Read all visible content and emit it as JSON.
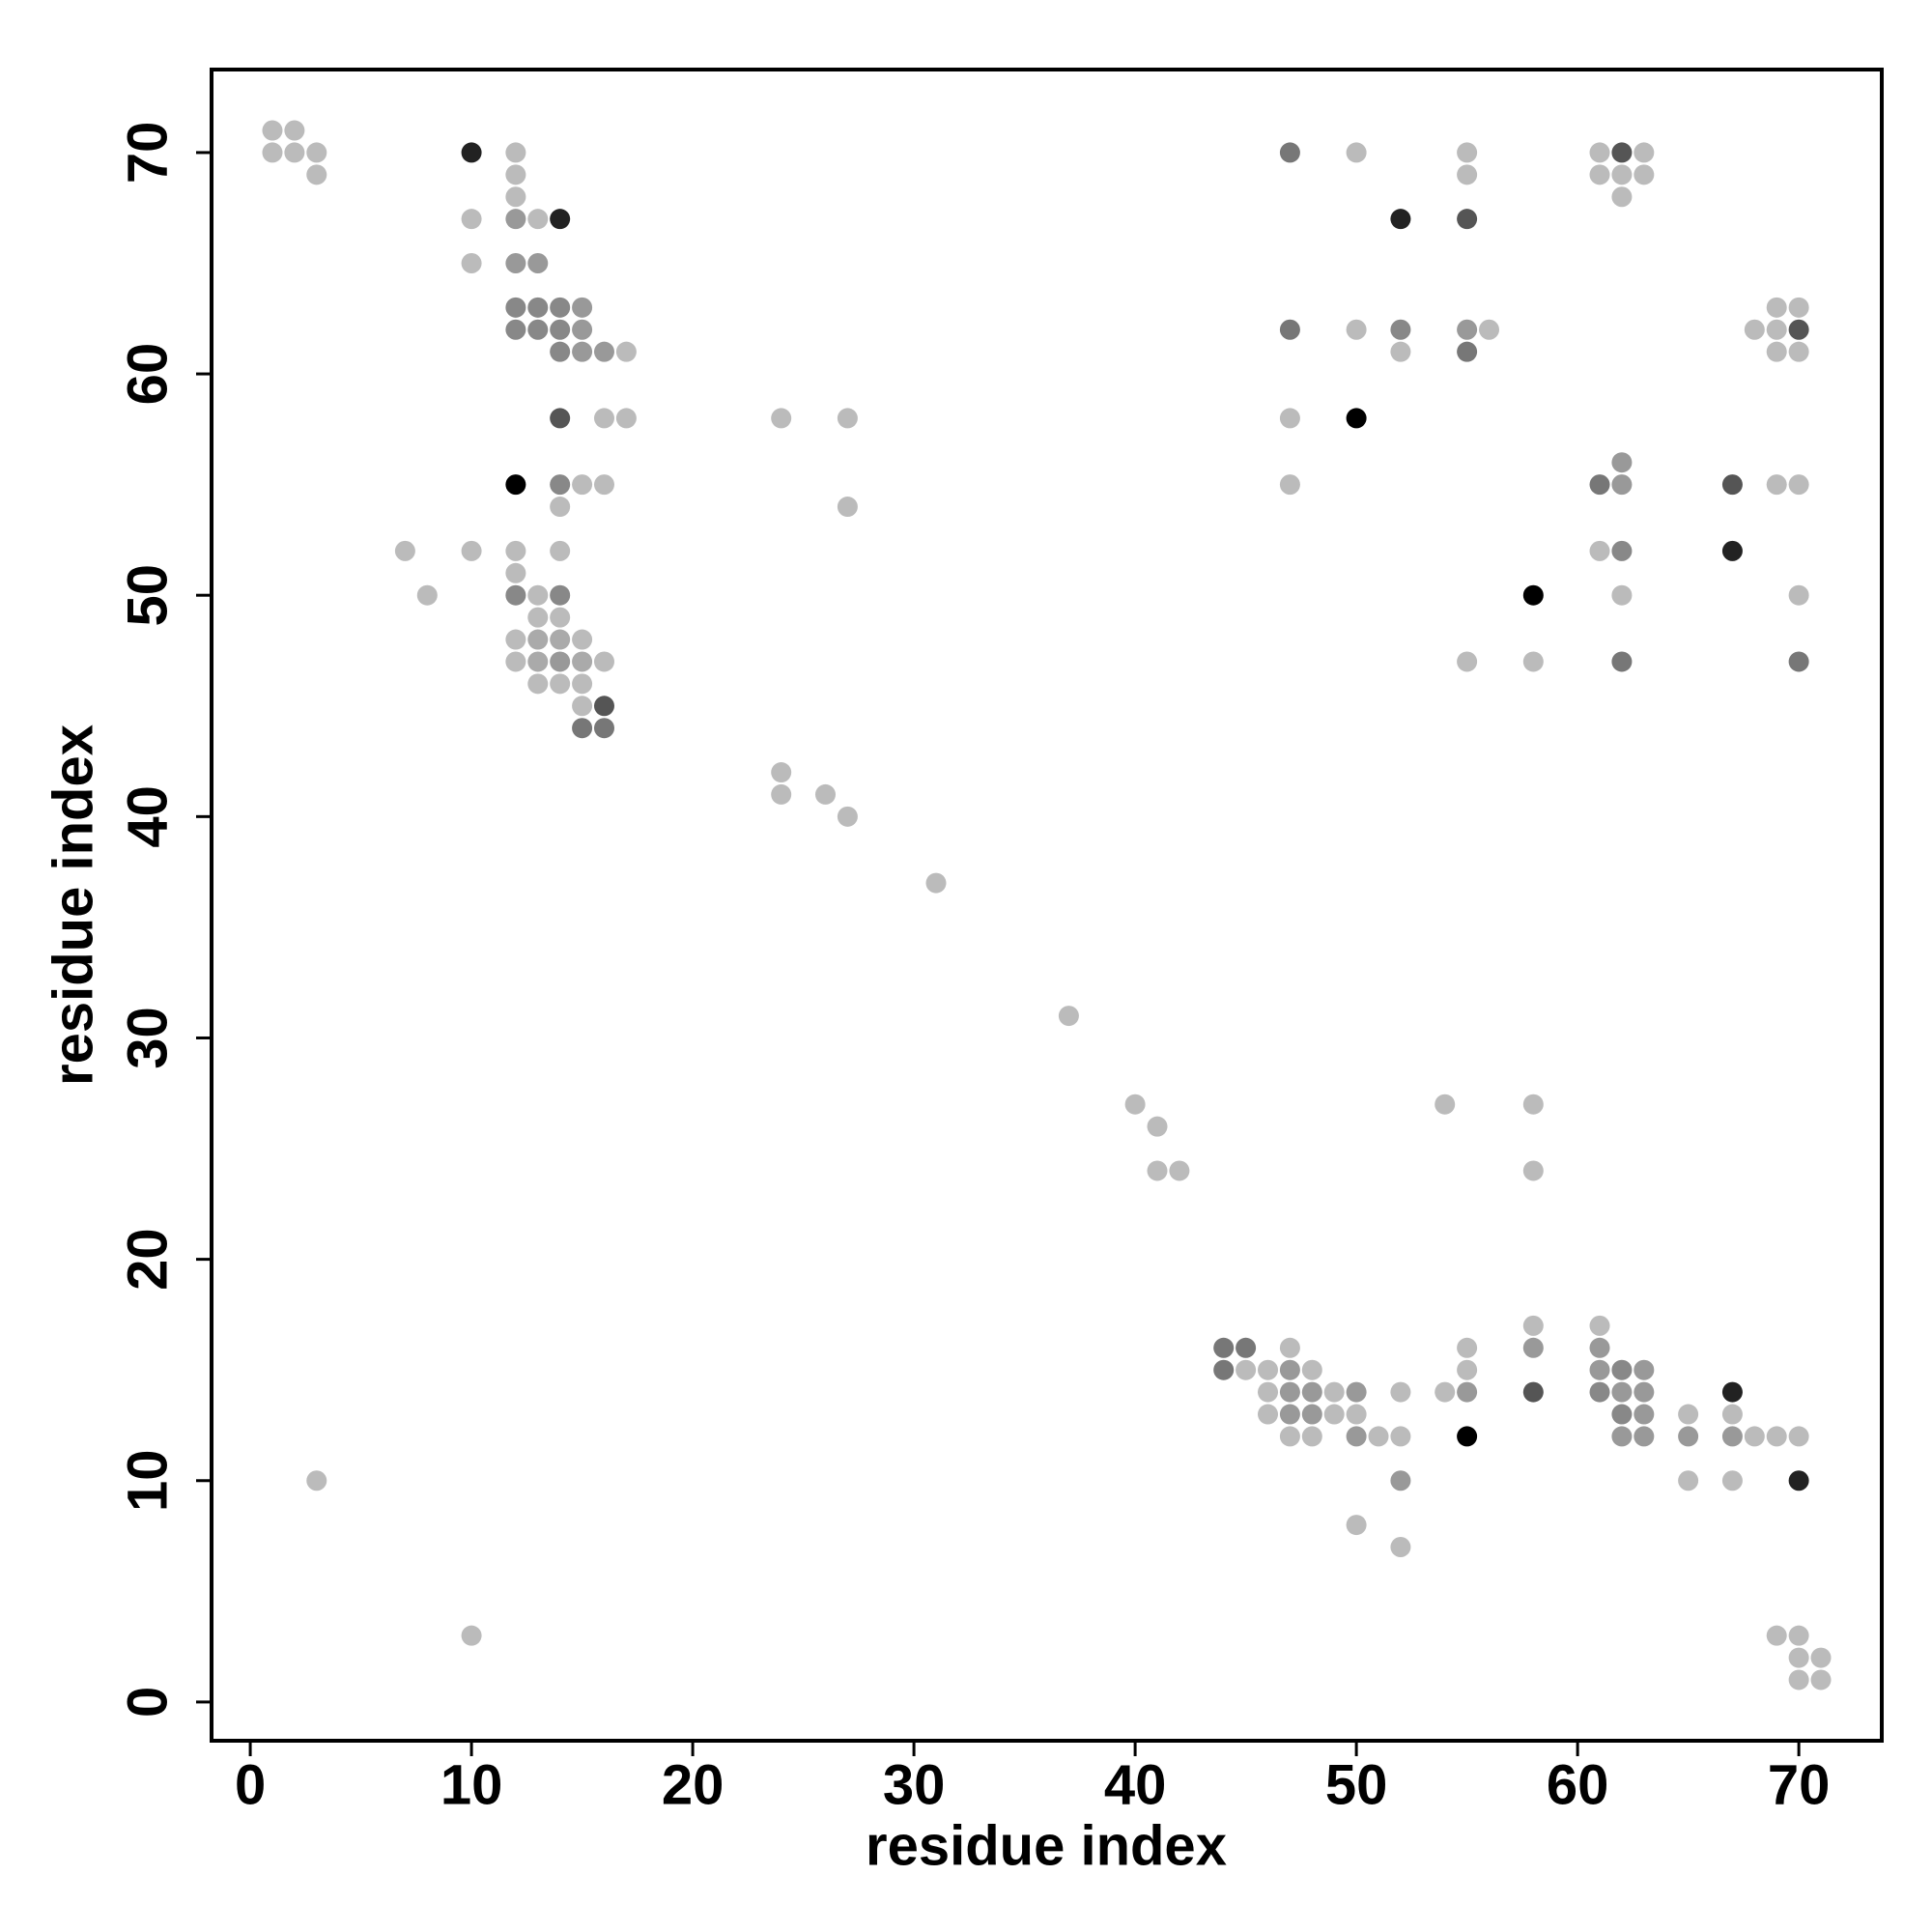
{
  "chart_data": {
    "type": "scatter",
    "xlabel": "residue index",
    "ylabel": "residue index",
    "xlim": [
      -1.75,
      73.75
    ],
    "ylim": [
      -1.75,
      73.75
    ],
    "xticks": [
      0,
      10,
      20,
      30,
      40,
      50,
      60,
      70
    ],
    "yticks": [
      0,
      10,
      20,
      30,
      40,
      50,
      60,
      70
    ],
    "series": [
      {
        "color": "#bbbbbb",
        "x": [
          1,
          2,
          1,
          2,
          3,
          12,
          50,
          55,
          61,
          63,
          3,
          12,
          55,
          61,
          62,
          63,
          12,
          62,
          10,
          13,
          10,
          69,
          70,
          50,
          56,
          68,
          69,
          17,
          52,
          69,
          70,
          16,
          17,
          24,
          27,
          47,
          15,
          16,
          47,
          69,
          70,
          14,
          27,
          7,
          10,
          12,
          14,
          61,
          12,
          8,
          13,
          62,
          70,
          13,
          14,
          12,
          15,
          12,
          16,
          55,
          58,
          13,
          14,
          15,
          15,
          24,
          24,
          26,
          27,
          31,
          37,
          40,
          54,
          58,
          41,
          41,
          42,
          58,
          58,
          61,
          47,
          55,
          45,
          46,
          48,
          55,
          46,
          49,
          52,
          54,
          46,
          49,
          50,
          65,
          67,
          47,
          48,
          51,
          52,
          68,
          69,
          70,
          3,
          65,
          67,
          50,
          52,
          10,
          69,
          70,
          70,
          71,
          70,
          71
        ],
        "values": [
          71,
          71,
          70,
          70,
          70,
          70,
          70,
          70,
          70,
          70,
          69,
          69,
          69,
          69,
          69,
          69,
          68,
          68,
          67,
          67,
          65,
          63,
          63,
          62,
          62,
          62,
          62,
          61,
          61,
          61,
          61,
          58,
          58,
          58,
          58,
          58,
          55,
          55,
          55,
          55,
          55,
          54,
          54,
          52,
          52,
          52,
          52,
          52,
          51,
          50,
          50,
          50,
          50,
          49,
          49,
          48,
          48,
          47,
          47,
          47,
          47,
          46,
          46,
          46,
          45,
          42,
          41,
          41,
          40,
          37,
          31,
          27,
          27,
          27,
          26,
          24,
          24,
          24,
          17,
          17,
          16,
          16,
          15,
          15,
          15,
          15,
          14,
          14,
          14,
          14,
          13,
          13,
          13,
          13,
          13,
          12,
          12,
          12,
          12,
          12,
          12,
          12,
          10,
          10,
          10,
          8,
          7,
          3,
          3,
          3,
          2,
          2,
          1,
          1
        ]
      },
      {
        "color": "#aaaaaa",
        "x": [
          13,
          14,
          13,
          15
        ],
        "values": [
          48,
          48,
          47,
          47
        ]
      },
      {
        "color": "#999999",
        "x": [
          12,
          12,
          13,
          15,
          15,
          55,
          15,
          16,
          62,
          62,
          14,
          58,
          61,
          47,
          61,
          63,
          47,
          48,
          50,
          55,
          62,
          63,
          47,
          48,
          63,
          50,
          62,
          63,
          65,
          67,
          52
        ],
        "values": [
          67,
          65,
          65,
          63,
          62,
          62,
          61,
          61,
          56,
          55,
          47,
          16,
          16,
          15,
          15,
          15,
          14,
          14,
          14,
          14,
          14,
          14,
          13,
          13,
          13,
          12,
          12,
          12,
          12,
          12,
          10
        ]
      },
      {
        "color": "#888888",
        "x": [
          12,
          13,
          14,
          12,
          13,
          14,
          52,
          14,
          14,
          62,
          12,
          14,
          62,
          61,
          62
        ],
        "values": [
          63,
          63,
          63,
          62,
          62,
          62,
          62,
          61,
          55,
          52,
          50,
          50,
          15,
          14,
          13
        ]
      },
      {
        "color": "#777777",
        "x": [
          47,
          47,
          55,
          61,
          62,
          70,
          15,
          16,
          44,
          45,
          44
        ],
        "values": [
          70,
          62,
          61,
          55,
          47,
          47,
          44,
          44,
          16,
          16,
          15
        ]
      },
      {
        "color": "#555555",
        "x": [
          62,
          55,
          70,
          14,
          67,
          16,
          58
        ],
        "values": [
          70,
          67,
          62,
          58,
          55,
          45,
          14
        ]
      },
      {
        "color": "#222222",
        "x": [
          10,
          14,
          52,
          67,
          67,
          70
        ],
        "values": [
          70,
          67,
          67,
          52,
          14,
          10
        ]
      },
      {
        "color": "#000000",
        "x": [
          50,
          12,
          58,
          55
        ],
        "values": [
          58,
          55,
          50,
          12
        ]
      }
    ]
  }
}
